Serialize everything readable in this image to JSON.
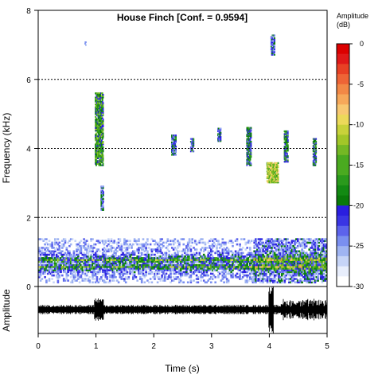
{
  "chart_data": {
    "type": "heatmap",
    "title": "House Finch [Conf. = 0.9594]",
    "xlabel": "Time (s)",
    "ylabel": "Frequency (kHz)",
    "amplitude_label": "Amplitude",
    "xlim": [
      0,
      5
    ],
    "ylim": [
      0,
      8
    ],
    "x_ticks": [
      "0",
      "1",
      "2",
      "3",
      "4",
      "5"
    ],
    "y_ticks": [
      "0",
      "2",
      "4",
      "6",
      "8"
    ],
    "dashed_lines_khz": [
      2,
      4,
      6
    ],
    "colorbar": {
      "title_line1": "Amplitude",
      "title_line2": "(dB)",
      "range": [
        -30,
        0
      ],
      "ticks": [
        "0",
        "-5",
        "-10",
        "-15",
        "-20",
        "-25",
        "-30"
      ],
      "colors": [
        "#ffffff",
        "#e8eefc",
        "#c6d4f7",
        "#9fb4f2",
        "#7a8ff0",
        "#5c63ec",
        "#3a35e4",
        "#2a1ee0",
        "#0a7a0a",
        "#138a13",
        "#2a9a1c",
        "#4aaa20",
        "#74b824",
        "#a2c628",
        "#c8d23a",
        "#ecd95a",
        "#f8c872",
        "#f6a85a",
        "#f28846",
        "#ee6436",
        "#e84024",
        "#e01818",
        "#dc0000"
      ]
    },
    "spectral_events": [
      {
        "t": [
          0.8,
          0.82
        ],
        "f": [
          6.9,
          7.1
        ],
        "db": -27
      },
      {
        "t": [
          0.98,
          1.12
        ],
        "f": [
          3.5,
          5.6
        ],
        "db": -17
      },
      {
        "t": [
          1.08,
          1.12
        ],
        "f": [
          2.2,
          2.9
        ],
        "db": -22
      },
      {
        "t": [
          2.3,
          2.38
        ],
        "f": [
          3.8,
          4.4
        ],
        "db": -21
      },
      {
        "t": [
          2.63,
          2.68
        ],
        "f": [
          3.9,
          4.3
        ],
        "db": -20
      },
      {
        "t": [
          3.1,
          3.16
        ],
        "f": [
          4.2,
          4.6
        ],
        "db": -21
      },
      {
        "t": [
          3.6,
          3.68
        ],
        "f": [
          3.5,
          4.6
        ],
        "db": -19
      },
      {
        "t": [
          4.02,
          4.08
        ],
        "f": [
          6.7,
          7.3
        ],
        "db": -22
      },
      {
        "t": [
          3.95,
          4.15
        ],
        "f": [
          3.0,
          3.6
        ],
        "db": -12
      },
      {
        "t": [
          4.25,
          4.32
        ],
        "f": [
          3.6,
          4.5
        ],
        "db": -19
      },
      {
        "t": [
          4.75,
          4.8
        ],
        "f": [
          3.5,
          4.3
        ],
        "db": -19
      }
    ],
    "noise_band_khz": [
      0.1,
      1.4
    ]
  }
}
